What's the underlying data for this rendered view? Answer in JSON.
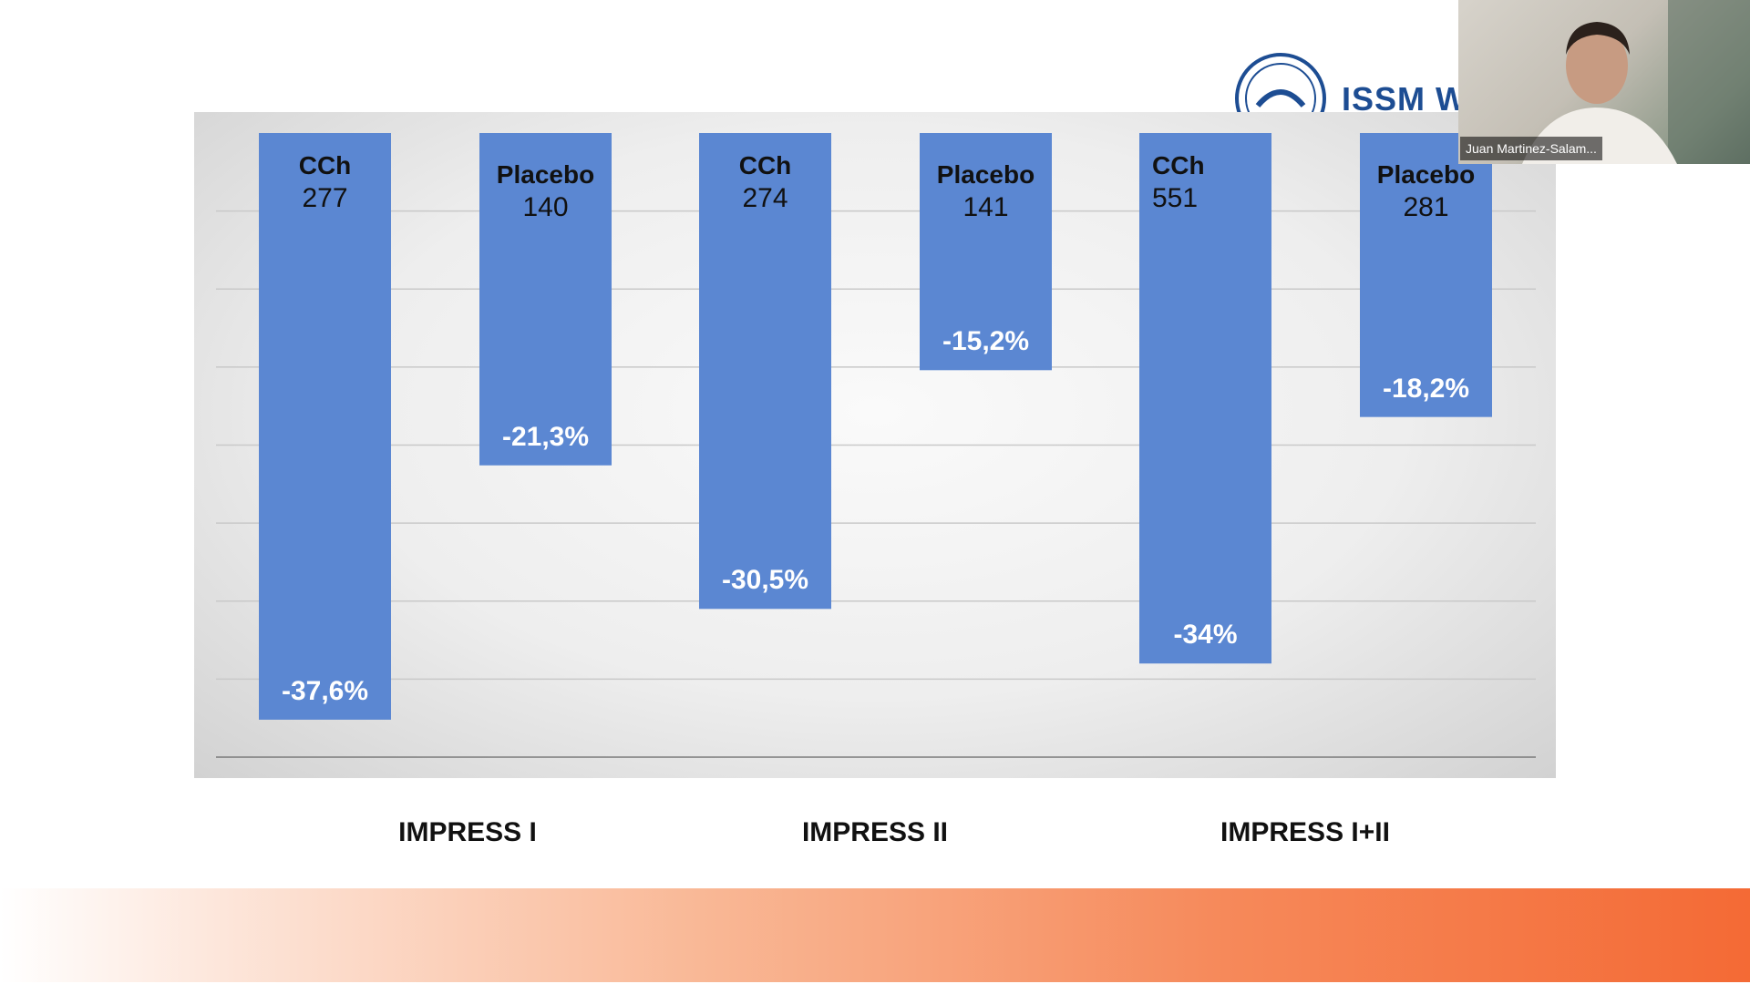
{
  "chart_data": {
    "type": "bar",
    "categories": [
      "IMPRESS I",
      "IMPRESS II",
      "IMPRESS I+II"
    ],
    "series": [
      {
        "name": "CCh",
        "values": [
          -37.6,
          -30.5,
          -34.0
        ],
        "n": [
          "277",
          "274",
          "551"
        ],
        "labels": [
          "-37,6%",
          "-30,5%",
          "-34%"
        ]
      },
      {
        "name": "Placebo",
        "values": [
          -21.3,
          -15.2,
          -18.2
        ],
        "n": [
          "140",
          "141",
          "281"
        ],
        "labels": [
          "-21,3%",
          "-15,2%",
          "-18,2%"
        ]
      }
    ],
    "title": "",
    "xlabel": "",
    "ylabel": "",
    "ylim": [
      -40,
      0
    ],
    "grid": true,
    "bar_color": "#5b87d2"
  },
  "logo": {
    "text": "ISSM W"
  },
  "webcam": {
    "participant_name": "Juan Martinez-Salam..."
  },
  "colors": {
    "footer_start": "#ffffff",
    "footer_end": "#f46a35"
  }
}
